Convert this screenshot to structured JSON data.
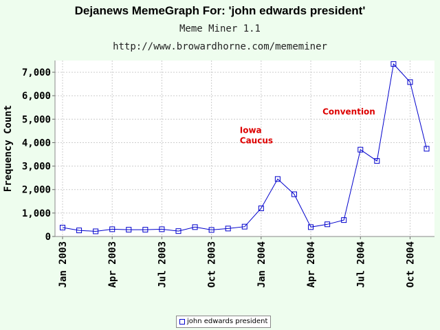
{
  "header": {
    "title": "Dejanews MemeGraph For: 'john edwards president'",
    "subtitle": "Meme Miner 1.1",
    "url": "http://www.browardhorne.com/mememiner"
  },
  "chart_data": {
    "type": "line",
    "title": "Dejanews MemeGraph For: 'john edwards president'",
    "xlabel": "",
    "ylabel": "Frequency Count",
    "ylim": [
      0,
      7500
    ],
    "y_ticks": [
      0,
      1000,
      2000,
      3000,
      4000,
      5000,
      6000,
      7000
    ],
    "y_tick_labels": [
      "0",
      "1,000",
      "2,000",
      "3,000",
      "4,000",
      "5,000",
      "6,000",
      "7,000"
    ],
    "x_tick_labels": [
      "Jan 2003",
      "Apr 2003",
      "Jul 2003",
      "Oct 2003",
      "Jan 2004",
      "Apr 2004",
      "Jul 2004",
      "Oct 2004"
    ],
    "x_tick_indices": [
      0,
      3,
      6,
      9,
      12,
      15,
      18,
      21
    ],
    "grid": true,
    "legend_position": "bottom-center",
    "colors": {
      "line": "#0000cc",
      "annotation": "#dd0000",
      "grid": "#cccccc",
      "plot_bg": "#ffffff"
    },
    "series": [
      {
        "name": "john edwards president",
        "x": [
          "Jan 2003",
          "Feb 2003",
          "Mar 2003",
          "Apr 2003",
          "May 2003",
          "Jun 2003",
          "Jul 2003",
          "Aug 2003",
          "Sep 2003",
          "Oct 2003",
          "Nov 2003",
          "Dec 2003",
          "Jan 2004",
          "Feb 2004",
          "Mar 2004",
          "Apr 2004",
          "May 2004",
          "Jun 2004",
          "Jul 2004",
          "Aug 2004",
          "Sep 2004",
          "Oct 2004",
          "Nov 2004"
        ],
        "values": [
          380,
          260,
          220,
          310,
          290,
          290,
          310,
          230,
          400,
          280,
          340,
          420,
          1200,
          2450,
          1800,
          400,
          520,
          700,
          3700,
          3220,
          7350,
          6580,
          3740
        ]
      }
    ],
    "annotations": [
      {
        "label_lines": [
          "Iowa",
          "Caucus"
        ],
        "x": "Dec 2003",
        "y": 4000
      },
      {
        "label_lines": [
          "Convention"
        ],
        "x": "May 2004",
        "y": 5000
      }
    ]
  }
}
